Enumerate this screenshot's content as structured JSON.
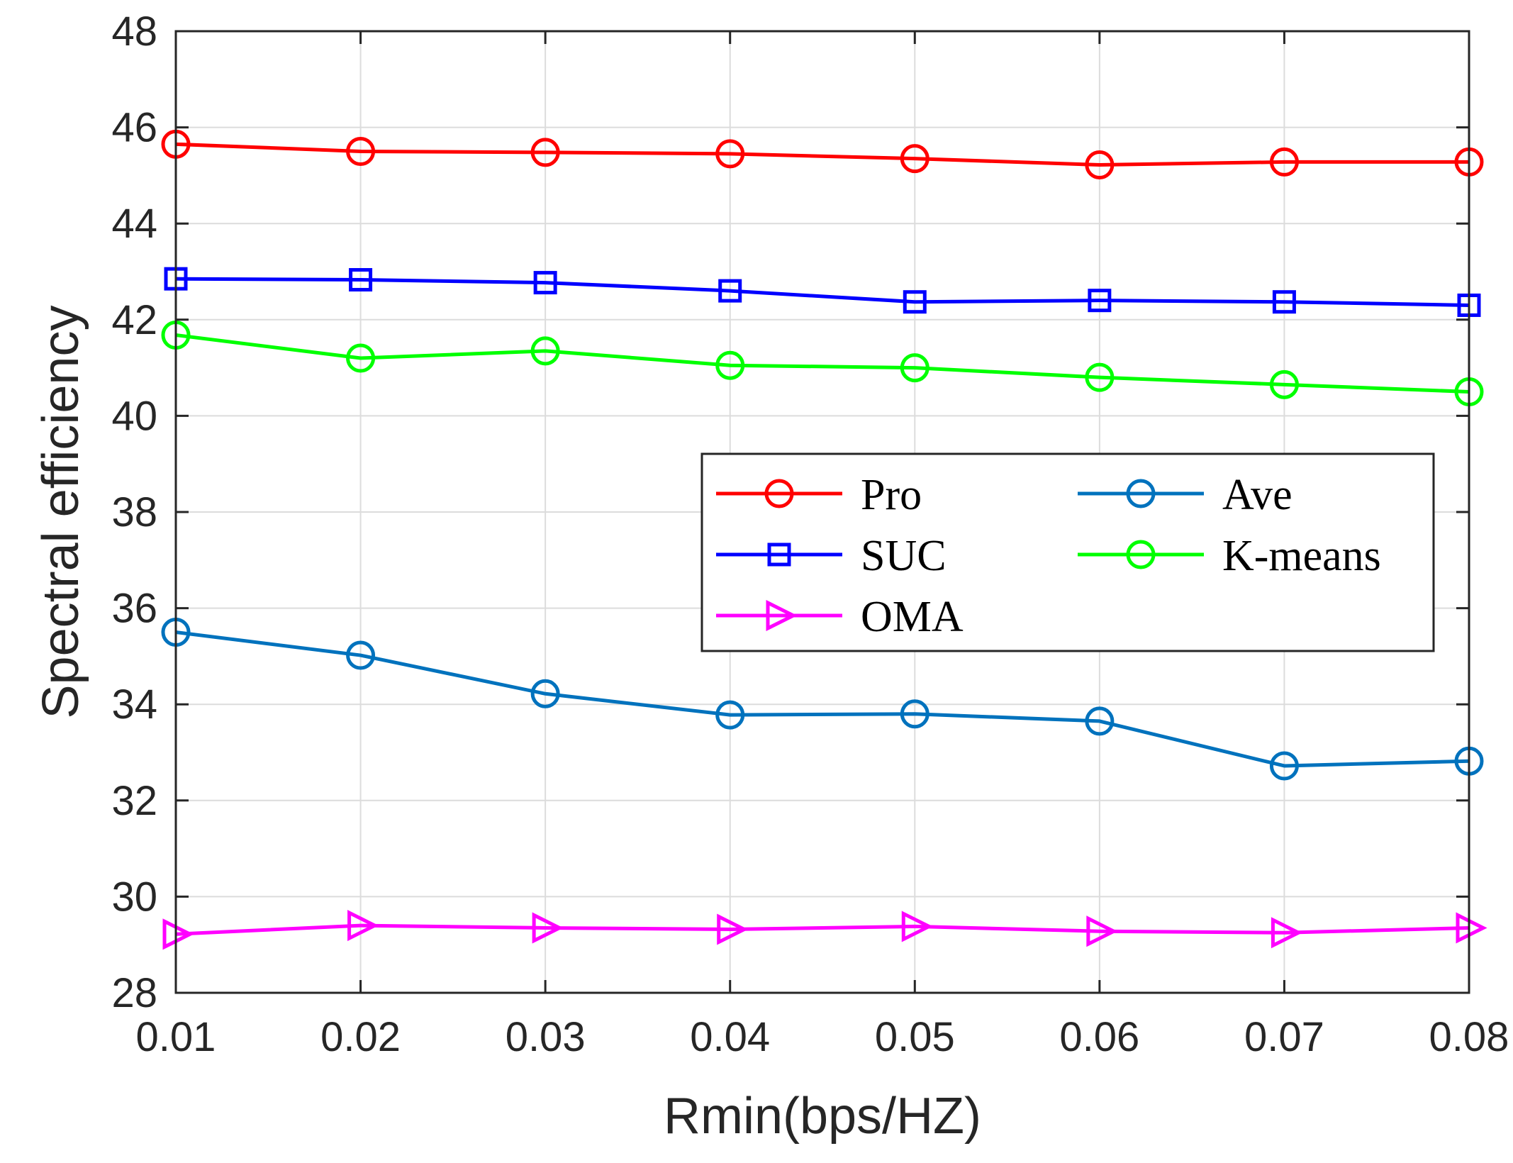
{
  "chart_data": {
    "type": "line",
    "title": "",
    "xlabel": "Rmin(bps/HZ)",
    "ylabel": "Spectral efficiency",
    "x": [
      0.01,
      0.02,
      0.03,
      0.04,
      0.05,
      0.06,
      0.07,
      0.08
    ],
    "x_tick_labels": [
      "0.01",
      "0.02",
      "0.03",
      "0.04",
      "0.05",
      "0.06",
      "0.07",
      "0.08"
    ],
    "xlim": [
      0.01,
      0.08
    ],
    "ylim": [
      28,
      48
    ],
    "y_ticks": [
      28,
      30,
      32,
      34,
      36,
      38,
      40,
      42,
      44,
      46,
      48
    ],
    "y_tick_labels": [
      "28",
      "30",
      "32",
      "34",
      "36",
      "38",
      "40",
      "42",
      "44",
      "46",
      "48"
    ],
    "grid": true,
    "legend_position": "center-right",
    "series": [
      {
        "name": "Pro",
        "color": "#ff0000",
        "marker": "circle",
        "values": [
          45.65,
          45.5,
          45.48,
          45.45,
          45.35,
          45.22,
          45.28,
          45.28
        ]
      },
      {
        "name": "Ave",
        "color": "#0072bd",
        "marker": "circle",
        "values": [
          35.5,
          35.02,
          34.22,
          33.78,
          33.8,
          33.65,
          32.72,
          32.82
        ]
      },
      {
        "name": "SUC",
        "color": "#0000ff",
        "marker": "square",
        "values": [
          42.85,
          42.83,
          42.77,
          42.6,
          42.37,
          42.4,
          42.37,
          42.3
        ]
      },
      {
        "name": "K-means",
        "color": "#00ff00",
        "marker": "circle",
        "values": [
          41.68,
          41.2,
          41.35,
          41.05,
          41.0,
          40.8,
          40.65,
          40.5
        ]
      },
      {
        "name": "OMA",
        "color": "#ff00ff",
        "marker": "triangle-right",
        "values": [
          29.22,
          29.4,
          29.35,
          29.32,
          29.38,
          29.28,
          29.25,
          29.35
        ]
      }
    ]
  }
}
